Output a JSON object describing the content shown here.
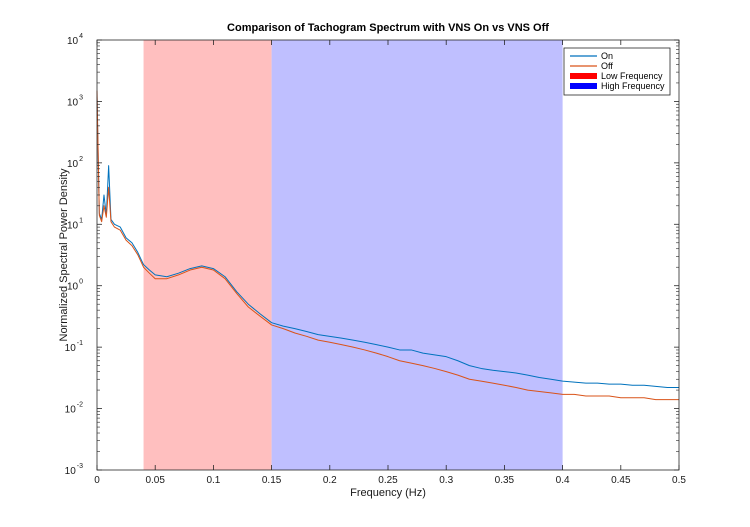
{
  "chart_data": {
    "type": "line",
    "title": "Comparison of Tachogram Spectrum with VNS On vs VNS Off",
    "xlabel": "Frequency (Hz)",
    "ylabel": "Normalized Spectral Power Density",
    "xlim": [
      0,
      0.5
    ],
    "ylim": [
      0.001,
      10000
    ],
    "yscale": "log",
    "grid": false,
    "legend_position": "top-right",
    "x_ticks": [
      "0",
      "0.05",
      "0.1",
      "0.15",
      "0.2",
      "0.25",
      "0.3",
      "0.35",
      "0.4",
      "0.45",
      "0.5"
    ],
    "y_ticks": [
      {
        "base": "10",
        "exp": "-3"
      },
      {
        "base": "10",
        "exp": "-2"
      },
      {
        "base": "10",
        "exp": "-1"
      },
      {
        "base": "10",
        "exp": "0"
      },
      {
        "base": "10",
        "exp": "1"
      },
      {
        "base": "10",
        "exp": "2"
      },
      {
        "base": "10",
        "exp": "3"
      },
      {
        "base": "10",
        "exp": "4"
      }
    ],
    "bands": [
      {
        "name": "Low Frequency",
        "x_start": 0.04,
        "x_end": 0.15,
        "color": "#ff0000",
        "fill_color": "#ffbfbf"
      },
      {
        "name": "High Frequency",
        "x_start": 0.15,
        "x_end": 0.4,
        "color": "#0000ff",
        "fill_color": "#bfbfff"
      }
    ],
    "series": [
      {
        "name": "On",
        "color": "#0072bd",
        "x": [
          0,
          0.002,
          0.004,
          0.006,
          0.008,
          0.01,
          0.012,
          0.015,
          0.02,
          0.025,
          0.03,
          0.035,
          0.04,
          0.045,
          0.05,
          0.06,
          0.07,
          0.08,
          0.09,
          0.1,
          0.11,
          0.12,
          0.13,
          0.14,
          0.15,
          0.16,
          0.17,
          0.18,
          0.19,
          0.2,
          0.21,
          0.22,
          0.23,
          0.24,
          0.25,
          0.26,
          0.27,
          0.28,
          0.29,
          0.3,
          0.31,
          0.32,
          0.33,
          0.34,
          0.35,
          0.36,
          0.37,
          0.38,
          0.39,
          0.4,
          0.41,
          0.42,
          0.43,
          0.44,
          0.45,
          0.46,
          0.47,
          0.48,
          0.49,
          0.5
        ],
        "values": [
          1200,
          15,
          12,
          30,
          14,
          90,
          12,
          10,
          9,
          6,
          5,
          3.5,
          2.2,
          1.8,
          1.5,
          1.4,
          1.6,
          1.9,
          2.1,
          1.9,
          1.4,
          0.8,
          0.5,
          0.35,
          0.25,
          0.22,
          0.2,
          0.18,
          0.16,
          0.15,
          0.14,
          0.13,
          0.12,
          0.11,
          0.1,
          0.09,
          0.09,
          0.08,
          0.075,
          0.07,
          0.06,
          0.05,
          0.045,
          0.042,
          0.04,
          0.038,
          0.035,
          0.032,
          0.03,
          0.028,
          0.027,
          0.026,
          0.026,
          0.025,
          0.025,
          0.024,
          0.024,
          0.023,
          0.022,
          0.022
        ]
      },
      {
        "name": "Off",
        "color": "#d95319",
        "x": [
          0,
          0.002,
          0.004,
          0.006,
          0.008,
          0.01,
          0.012,
          0.015,
          0.02,
          0.025,
          0.03,
          0.035,
          0.04,
          0.045,
          0.05,
          0.06,
          0.07,
          0.08,
          0.09,
          0.1,
          0.11,
          0.12,
          0.13,
          0.14,
          0.15,
          0.16,
          0.17,
          0.18,
          0.19,
          0.2,
          0.21,
          0.22,
          0.23,
          0.24,
          0.25,
          0.26,
          0.27,
          0.28,
          0.29,
          0.3,
          0.31,
          0.32,
          0.33,
          0.34,
          0.35,
          0.36,
          0.37,
          0.38,
          0.39,
          0.4,
          0.41,
          0.42,
          0.43,
          0.44,
          0.45,
          0.46,
          0.47,
          0.48,
          0.49,
          0.5
        ],
        "values": [
          1500,
          14,
          11,
          20,
          13,
          40,
          11,
          9,
          8,
          5.5,
          4.5,
          3.2,
          2.0,
          1.6,
          1.3,
          1.3,
          1.5,
          1.8,
          2.0,
          1.8,
          1.3,
          0.75,
          0.45,
          0.32,
          0.23,
          0.2,
          0.17,
          0.15,
          0.13,
          0.12,
          0.11,
          0.1,
          0.09,
          0.08,
          0.07,
          0.06,
          0.055,
          0.05,
          0.045,
          0.04,
          0.035,
          0.03,
          0.028,
          0.026,
          0.024,
          0.022,
          0.02,
          0.019,
          0.018,
          0.017,
          0.017,
          0.016,
          0.016,
          0.016,
          0.015,
          0.015,
          0.015,
          0.014,
          0.014,
          0.014
        ]
      }
    ]
  }
}
